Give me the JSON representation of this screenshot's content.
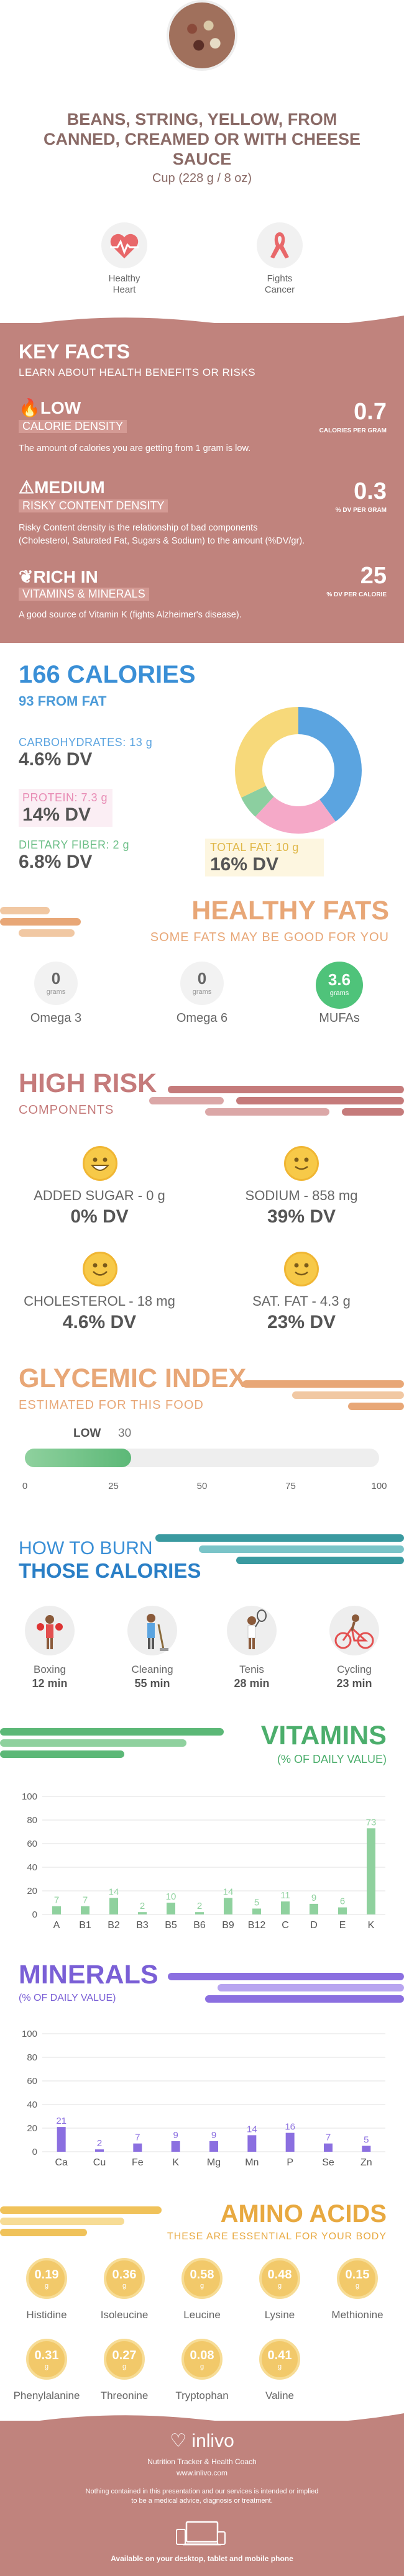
{
  "header": {
    "title_line1": "BEANS, STRING, YELLOW, FROM",
    "title_line2": "CANNED, CREAMED OR WITH CHEESE",
    "title_line3": "SAUCE",
    "serving": "Cup (228 g / 8 oz)",
    "icons": [
      {
        "icon": "heart-pulse-icon",
        "line1": "Healthy",
        "line2": "Heart",
        "color": "#e8686a"
      },
      {
        "icon": "ribbon-icon",
        "line1": "Fights",
        "line2": "Cancer",
        "color": "#f7c948"
      }
    ]
  },
  "key_facts": {
    "title": "KEY FACTS",
    "subtitle": "LEARN ABOUT HEALTH BENEFITS OR RISKS",
    "items": [
      {
        "icon": "flame-icon",
        "level": "LOW",
        "label": "CALORIE DENSITY",
        "value": "0.7",
        "unit": "CALORIES PER GRAM",
        "desc1": "The amount of calories you are getting from 1 gram is low.",
        "desc2": ""
      },
      {
        "icon": "warning-icon",
        "level": "MEDIUM",
        "label": "RISKY CONTENT DENSITY",
        "value": "0.3",
        "unit": "% DV PER GRAM",
        "desc1": "Risky Content density is the relationship of bad components",
        "desc2": "(Cholesterol, Saturated Fat, Sugars & Sodium) to the amount (%DV/gr)."
      },
      {
        "icon": "leaf-icon",
        "level": "RICH IN",
        "label": "VITAMINS & MINERALS",
        "value": "25",
        "unit": "% DV PER CALORIE",
        "desc1": "A good source of Vitamin K (fights Alzheimer's disease).",
        "desc2": ""
      }
    ]
  },
  "calories": {
    "title": "166 CALORIES",
    "from_fat": "93 FROM FAT",
    "carbs_label": "CARBOHYDRATES: 13 g",
    "carbs_dv": "4.6% DV",
    "protein_label": "PROTEIN: 7.3 g",
    "protein_dv": "14% DV",
    "fiber_label": "DIETARY FIBER: 2 g",
    "fiber_dv": "6.8% DV",
    "fat_label": "TOTAL FAT: 10 g",
    "fat_dv": "16% DV",
    "colors": {
      "carbs": "#5ba4e0",
      "protein": "#f5a9c8",
      "fiber": "#8ccfa0",
      "fat": "#f7d97a"
    }
  },
  "healthy_fats": {
    "title": "HEALTHY FATS",
    "subtitle": "SOME FATS MAY BE GOOD FOR YOU",
    "items": [
      {
        "value": "0",
        "unit": "grams",
        "label": "Omega 3"
      },
      {
        "value": "0",
        "unit": "grams",
        "label": "Omega 6"
      },
      {
        "value": "3.6",
        "unit": "grams",
        "label": "MUFAs"
      }
    ]
  },
  "high_risk": {
    "title": "HIGH RISK",
    "subtitle": "COMPONENTS",
    "items": [
      {
        "label": "ADDED SUGAR - 0 g",
        "dv": "0% DV"
      },
      {
        "label": "SODIUM - 858 mg",
        "dv": "39% DV"
      },
      {
        "label": "CHOLESTEROL - 18 mg",
        "dv": "4.6% DV"
      },
      {
        "label": "SAT. FAT - 4.3 g",
        "dv": "23% DV"
      }
    ]
  },
  "glycemic": {
    "title": "GLYCEMIC INDEX",
    "subtitle": "ESTIMATED FOR THIS FOOD",
    "level": "LOW",
    "value": "30",
    "value_num": 30,
    "ticks": [
      "0",
      "25",
      "50",
      "75",
      "100"
    ]
  },
  "burn": {
    "title1": "HOW TO BURN",
    "title2": "THOSE CALORIES",
    "items": [
      {
        "icon": "boxing-icon",
        "label": "Boxing",
        "time": "12 min"
      },
      {
        "icon": "cleaning-icon",
        "label": "Cleaning",
        "time": "55 min"
      },
      {
        "icon": "tennis-icon",
        "label": "Tenis",
        "time": "28 min"
      },
      {
        "icon": "cycling-icon",
        "label": "Cycling",
        "time": "23 min"
      }
    ]
  },
  "vitamins": {
    "title": "VITAMINS",
    "subtitle": "(% OF DAILY VALUE)",
    "chart_data": {
      "type": "bar",
      "categories": [
        "A",
        "B1",
        "B2",
        "B3",
        "B5",
        "B6",
        "B9",
        "B12",
        "C",
        "D",
        "E",
        "K"
      ],
      "values": [
        7,
        7,
        14,
        2,
        10,
        2,
        14,
        5,
        11,
        9,
        6,
        73
      ],
      "labels": [
        "7",
        "7",
        "14",
        "2",
        "10",
        "2",
        "14",
        "5",
        "11",
        "9",
        "6",
        "73"
      ],
      "yticks": [
        "0",
        "20",
        "40",
        "60",
        "80",
        "100"
      ],
      "ylim": [
        0,
        100
      ],
      "color": "#8fd19e"
    }
  },
  "minerals": {
    "title": "MINERALS",
    "subtitle": "(% OF DAILY VALUE)",
    "chart_data": {
      "type": "bar",
      "categories": [
        "Ca",
        "Cu",
        "Fe",
        "K",
        "Mg",
        "Mn",
        "P",
        "Se",
        "Zn"
      ],
      "values": [
        21,
        2,
        7,
        9,
        9,
        14,
        16,
        7,
        5
      ],
      "labels": [
        "21",
        "2",
        "7",
        "9",
        "9",
        "14",
        "16",
        "7",
        "5"
      ],
      "yticks": [
        "0",
        "20",
        "40",
        "60",
        "80",
        "100"
      ],
      "ylim": [
        0,
        100
      ],
      "color": "#8b6fe0"
    }
  },
  "amino": {
    "title": "AMINO ACIDS",
    "subtitle": "THESE ARE ESSENTIAL FOR YOUR BODY",
    "unit": "g",
    "items": [
      {
        "value": "0.19",
        "label": "Histidine"
      },
      {
        "value": "0.36",
        "label": "Isoleucine"
      },
      {
        "value": "0.58",
        "label": "Leucine"
      },
      {
        "value": "0.48",
        "label": "Lysine"
      },
      {
        "value": "0.15",
        "label": "Methionine"
      },
      {
        "value": "0.31",
        "label": "Phenylalanine"
      },
      {
        "value": "0.27",
        "label": "Threonine"
      },
      {
        "value": "0.08",
        "label": "Tryptophan"
      },
      {
        "value": "0.41",
        "label": "Valine"
      }
    ]
  },
  "footer": {
    "brand": "inlivo",
    "tagline": "Nutrition Tracker & Health Coach",
    "url": "www.inlivo.com",
    "disclaimer1": "Nothing contained in this presentation and our services is intended or implied",
    "disclaimer2": "to be a medical advice, diagnosis or treatment.",
    "available": "Available on your desktop, tablet and mobile phone"
  }
}
